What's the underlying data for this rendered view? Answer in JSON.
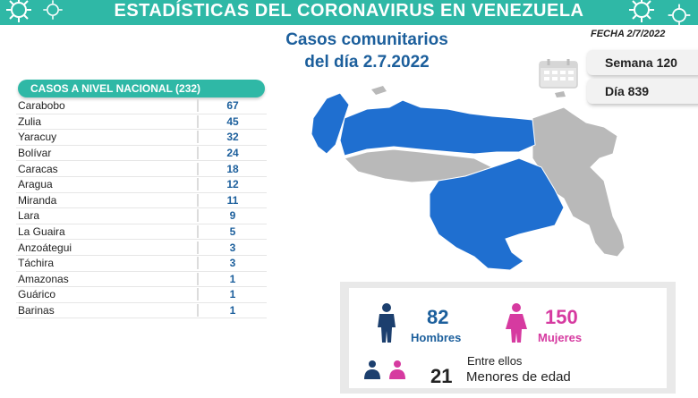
{
  "header": {
    "title": "ESTADÍSTICAS DEL CORONAVIRUS EN VENEZUELA"
  },
  "subtitle": {
    "line1": "Casos comunitarios",
    "line2": "del día 2.7.2022"
  },
  "date_label": "FECHA 2/7/2022",
  "pills": {
    "week": "Semana 120",
    "day": "Día 839"
  },
  "table": {
    "header": "CASOS A NIVEL NACIONAL  (232)",
    "rows": [
      {
        "state": "Carabobo",
        "count": "67"
      },
      {
        "state": "Zulia",
        "count": "45"
      },
      {
        "state": "Yaracuy",
        "count": "32"
      },
      {
        "state": "Bolívar",
        "count": "24"
      },
      {
        "state": "Caracas",
        "count": "18"
      },
      {
        "state": "Aragua",
        "count": "12"
      },
      {
        "state": "Miranda",
        "count": "11"
      },
      {
        "state": "Lara",
        "count": "9"
      },
      {
        "state": "La Guaira",
        "count": "5"
      },
      {
        "state": "Anzoátegui",
        "count": "3"
      },
      {
        "state": "Táchira",
        "count": "3"
      },
      {
        "state": "Amazonas",
        "count": "1"
      },
      {
        "state": "Guárico",
        "count": "1"
      },
      {
        "state": "Barinas",
        "count": "1"
      }
    ]
  },
  "gender": {
    "men_count": "82",
    "men_label": "Hombres",
    "women_count": "150",
    "women_label": "Mujeres"
  },
  "minors": {
    "line1": "Entre ellos",
    "count": "21",
    "line2": "Menores de edad"
  },
  "colors": {
    "teal": "#2fb8a6",
    "blue": "#1c5f9c",
    "map_blue": "#1f6fd0",
    "map_gray": "#b9b9b9",
    "pink": "#d63aa0"
  }
}
